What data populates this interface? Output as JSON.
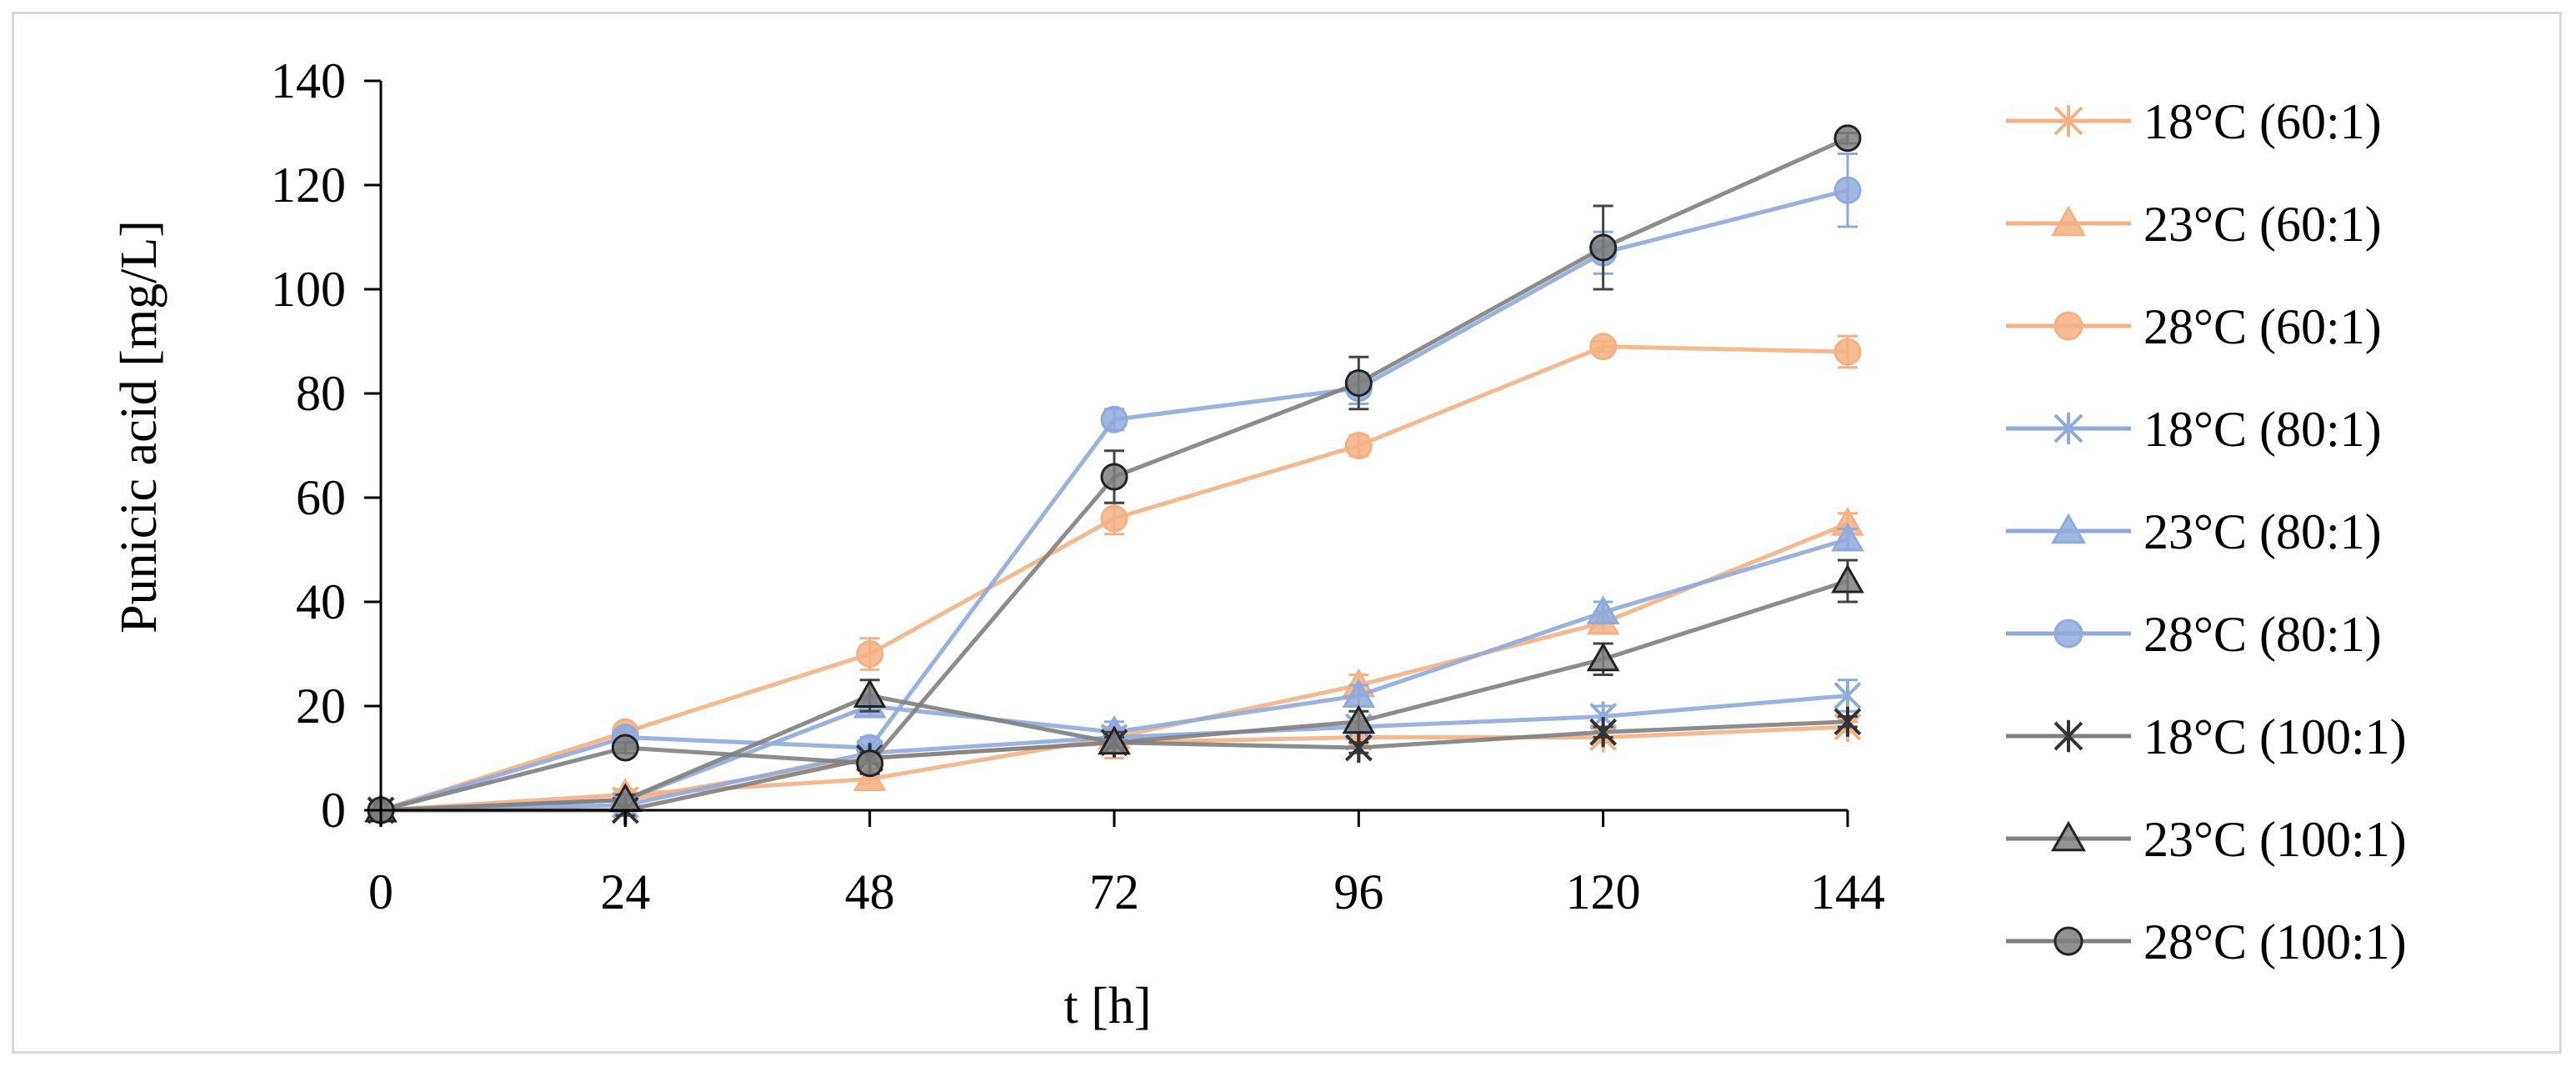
{
  "chart_data": {
    "type": "line",
    "title": "",
    "xlabel": "t [h]",
    "ylabel": "Punicic acid [mg/L]",
    "x": [
      0,
      24,
      48,
      72,
      96,
      120,
      144
    ],
    "xticks": [
      "0",
      "24",
      "48",
      "72",
      "96",
      "120",
      "144"
    ],
    "yticks": [
      "0",
      "20",
      "40",
      "60",
      "80",
      "100",
      "120",
      "140"
    ],
    "xlim": [
      0,
      144
    ],
    "ylim": [
      0,
      140
    ],
    "grid": false,
    "legend_position": "right",
    "series": [
      {
        "name": "18°C (60:1)",
        "color": "#f4b183",
        "marker": "asterisk",
        "values": [
          0,
          2,
          10,
          13,
          14,
          14,
          16
        ],
        "errors": [
          0,
          1,
          2,
          3,
          2,
          1,
          1
        ]
      },
      {
        "name": "23°C (60:1)",
        "color": "#f4b183",
        "marker": "triangle",
        "values": [
          0,
          3,
          6,
          14,
          24,
          36,
          55
        ],
        "errors": [
          0,
          1,
          1,
          2,
          2,
          2,
          2
        ]
      },
      {
        "name": "28°C (60:1)",
        "color": "#f4b183",
        "marker": "circle",
        "values": [
          0,
          15,
          30,
          56,
          70,
          89,
          88
        ],
        "errors": [
          0,
          1,
          3,
          3,
          2,
          1,
          3
        ]
      },
      {
        "name": "18°C (80:1)",
        "color": "#8faadc",
        "marker": "asterisk",
        "values": [
          0,
          1,
          11,
          14,
          16,
          18,
          22
        ],
        "errors": [
          0,
          1,
          1,
          1,
          1,
          2,
          3
        ]
      },
      {
        "name": "23°C (80:1)",
        "color": "#8faadc",
        "marker": "triangle",
        "values": [
          0,
          2,
          20,
          15,
          22,
          38,
          52
        ],
        "errors": [
          0,
          1,
          2,
          2,
          2,
          2,
          2
        ]
      },
      {
        "name": "28°C (80:1)",
        "color": "#8faadc",
        "marker": "circle",
        "values": [
          0,
          14,
          12,
          75,
          81,
          107,
          119
        ],
        "errors": [
          0,
          1,
          2,
          2,
          3,
          4,
          7
        ]
      },
      {
        "name": "18°C (100:1)",
        "color": "#7f7f7f",
        "marker": "asterisk",
        "values": [
          0,
          0,
          10,
          13,
          12,
          15,
          17
        ],
        "errors": [
          0,
          1,
          1,
          1,
          1,
          1,
          1
        ]
      },
      {
        "name": "23°C (100:1)",
        "color": "#7f7f7f",
        "marker": "triangle",
        "values": [
          0,
          2,
          22,
          13,
          17,
          29,
          44
        ],
        "errors": [
          0,
          1,
          3,
          2,
          2,
          3,
          4
        ]
      },
      {
        "name": "28°C (100:1)",
        "color": "#7f7f7f",
        "marker": "circle",
        "values": [
          0,
          12,
          9,
          64,
          82,
          108,
          129
        ],
        "errors": [
          0,
          1,
          2,
          5,
          5,
          8,
          1
        ]
      }
    ]
  }
}
